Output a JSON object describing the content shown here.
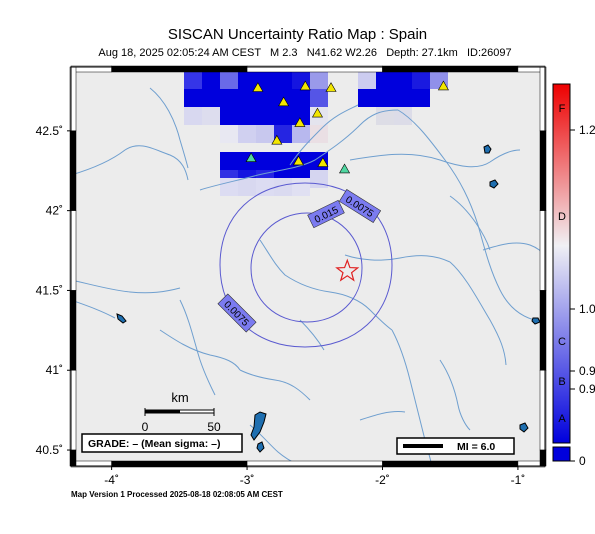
{
  "title": "SISCAN Uncertainty Ratio Map : Spain",
  "subtitle": {
    "date": "Aug 18, 2025 02:05:24 AM CEST",
    "magnitude": "M 2.3",
    "location": "N41.62 W2.26",
    "depth": "Depth: 27.1km",
    "id": "ID:26097"
  },
  "footer": "Map Version 1 Processed 2025-08-18 02:08:05 AM CEST",
  "map": {
    "lon_range": [
      -4.3,
      -0.8
    ],
    "lat_range": [
      40.4,
      42.9
    ],
    "x_ticks": [
      {
        "value": -4,
        "label": "-4˚"
      },
      {
        "value": -3,
        "label": "-3˚"
      },
      {
        "value": -2,
        "label": "-2˚"
      },
      {
        "value": -1,
        "label": "-1˚"
      }
    ],
    "y_ticks": [
      {
        "value": 42.5,
        "label": "42.5˚"
      },
      {
        "value": 42,
        "label": "42˚"
      },
      {
        "value": 41.5,
        "label": "41.5˚"
      },
      {
        "value": 41,
        "label": "41˚"
      },
      {
        "value": 40.5,
        "label": "40.5˚"
      }
    ],
    "epicenter": {
      "lon": -2.26,
      "lat": 41.62
    },
    "contours": [
      {
        "label": "0.015",
        "level": "inner"
      },
      {
        "label": "0.0075",
        "level": "outer"
      },
      {
        "label": "0.0075",
        "level": "outer"
      }
    ],
    "stations": [
      {
        "lon": -2.92,
        "lat": 42.77,
        "color": "#f2e600"
      },
      {
        "lon": -2.57,
        "lat": 42.78,
        "color": "#f2e600"
      },
      {
        "lon": -2.38,
        "lat": 42.77,
        "color": "#f2e600"
      },
      {
        "lon": -2.73,
        "lat": 42.68,
        "color": "#f2e600"
      },
      {
        "lon": -2.48,
        "lat": 42.61,
        "color": "#f2e600"
      },
      {
        "lon": -2.61,
        "lat": 42.55,
        "color": "#f2e600"
      },
      {
        "lon": -2.78,
        "lat": 42.44,
        "color": "#f2e600"
      },
      {
        "lon": -2.97,
        "lat": 42.33,
        "color": "#4fd6a0"
      },
      {
        "lon": -2.62,
        "lat": 42.31,
        "color": "#f2e600"
      },
      {
        "lon": -2.44,
        "lat": 42.3,
        "color": "#f2e600"
      },
      {
        "lon": -2.28,
        "lat": 42.26,
        "color": "#4fd6a0"
      },
      {
        "lon": -1.55,
        "lat": 42.78,
        "color": "#f2e600"
      }
    ],
    "scale_bar": {
      "unit": "km",
      "labels": [
        "0",
        "50"
      ]
    },
    "grade_label": "GRADE: – (Mean sigma: –)",
    "mi_legend": "MI = 6.0"
  },
  "colorbar": {
    "letters": [
      "F",
      "D",
      "C",
      "B",
      "A"
    ],
    "values": [
      "1.2",
      "1.0",
      "0.9",
      "0.9",
      "0"
    ]
  },
  "colors": {
    "cell_blue": "#0000dd",
    "contour": "#5a5ad0",
    "river": "#6f9fcf",
    "land": "#ececec"
  }
}
